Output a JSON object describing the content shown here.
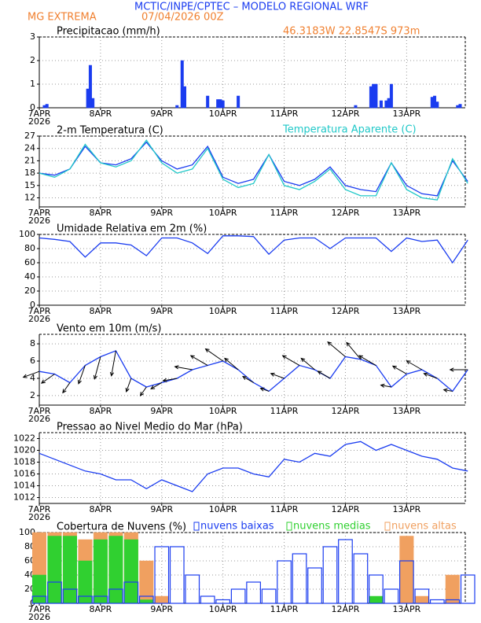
{
  "header": {
    "title": "MCTIC/INPE/CPTEC – MODELO REGIONAL WRF",
    "location": "MG EXTREMA",
    "run": "07/04/2026 00Z",
    "coordinates": "46.3183W 22.8547S 973m"
  },
  "chart_data": [
    {
      "type": "bar",
      "title": "Precipitacao (mm/h)",
      "color": "#1a3cf0",
      "x": [
        2,
        3,
        19,
        20,
        21,
        54,
        56,
        57,
        66,
        70,
        71,
        72,
        78,
        124,
        130,
        131,
        132,
        134,
        136,
        137,
        138,
        154,
        155,
        156,
        164,
        165
      ],
      "values": [
        0.1,
        0.15,
        0.8,
        1.8,
        0.4,
        0.1,
        2.0,
        0.9,
        0.5,
        0.35,
        0.35,
        0.3,
        0.5,
        0.1,
        0.9,
        1.0,
        1.0,
        0.3,
        0.3,
        0.4,
        1.0,
        0.45,
        0.5,
        0.25,
        0.1,
        0.15
      ],
      "xlim": [
        0,
        167
      ],
      "ylim": [
        0,
        3
      ],
      "yticks": [
        0,
        1,
        2,
        3
      ],
      "grid": true,
      "year": "2026",
      "xticks": [
        {
          "value": 0,
          "label": "7APR"
        },
        {
          "value": 24,
          "label": "8APR"
        },
        {
          "value": 48,
          "label": "9APR"
        },
        {
          "value": 72,
          "label": "10APR"
        },
        {
          "value": 96,
          "label": "11APR"
        },
        {
          "value": 120,
          "label": "12APR"
        },
        {
          "value": 144,
          "label": "13APR"
        }
      ]
    },
    {
      "type": "line",
      "title": "2-m Temperatura (C)",
      "x": [
        0,
        6,
        12,
        18,
        24,
        30,
        36,
        42,
        48,
        54,
        60,
        66,
        72,
        78,
        84,
        90,
        96,
        102,
        108,
        114,
        120,
        126,
        132,
        138,
        144,
        150,
        156,
        162,
        168
      ],
      "series": [
        {
          "color": "#1a3cf0",
          "values": [
            18,
            17.5,
            19,
            24.5,
            20.5,
            20,
            21.5,
            25.5,
            21,
            19,
            20,
            24.5,
            17,
            15.5,
            16.5,
            22.5,
            16,
            15,
            16.5,
            19.5,
            15,
            14,
            13.5,
            20.5,
            15,
            13,
            12.5,
            21,
            16
          ]
        },
        {
          "name": "Temperatura Aparente (C)",
          "color": "#20c8c8",
          "values": [
            18,
            17,
            19,
            25,
            20.5,
            19.5,
            21,
            26,
            20.5,
            18,
            19,
            24,
            16.5,
            14.5,
            15.5,
            22.5,
            15,
            14,
            16,
            19,
            14,
            12.5,
            12.5,
            20.5,
            14,
            12,
            11.5,
            21.5,
            15.5
          ]
        }
      ],
      "xlim": [
        0,
        167
      ],
      "ylim": [
        9.8,
        27
      ],
      "yticks": [
        12,
        15,
        18,
        21,
        24,
        27
      ],
      "grid": true,
      "year": "2026",
      "xticks": [
        {
          "value": 0,
          "label": "7APR"
        },
        {
          "value": 24,
          "label": "8APR"
        },
        {
          "value": 48,
          "label": "9APR"
        },
        {
          "value": 72,
          "label": "10APR"
        },
        {
          "value": 96,
          "label": "11APR"
        },
        {
          "value": 120,
          "label": "12APR"
        },
        {
          "value": 144,
          "label": "13APR"
        }
      ]
    },
    {
      "type": "line",
      "title": "Umidade Relativa em 2m (%)",
      "x": [
        0,
        6,
        12,
        18,
        24,
        30,
        36,
        42,
        48,
        54,
        60,
        66,
        72,
        78,
        84,
        90,
        96,
        102,
        108,
        114,
        120,
        126,
        132,
        138,
        144,
        150,
        156,
        162,
        168
      ],
      "series": [
        {
          "color": "#1a3cf0",
          "values": [
            95,
            93,
            90,
            68,
            88,
            88,
            85,
            70,
            95,
            95,
            88,
            73,
            98,
            98,
            97,
            72,
            92,
            95,
            95,
            80,
            95,
            95,
            95,
            76,
            95,
            90,
            92,
            60,
            92
          ]
        }
      ],
      "xlim": [
        0,
        167
      ],
      "ylim": [
        0,
        100
      ],
      "yticks": [
        0,
        20,
        40,
        60,
        80,
        100
      ],
      "grid": true,
      "year": "2026",
      "xticks": [
        {
          "value": 0,
          "label": "7APR"
        },
        {
          "value": 24,
          "label": "8APR"
        },
        {
          "value": 48,
          "label": "9APR"
        },
        {
          "value": 72,
          "label": "10APR"
        },
        {
          "value": 96,
          "label": "11APR"
        },
        {
          "value": 120,
          "label": "12APR"
        },
        {
          "value": 144,
          "label": "13APR"
        }
      ]
    },
    {
      "type": "wind",
      "title": "Vento em 10m (m/s)",
      "x": [
        0,
        6,
        12,
        18,
        24,
        30,
        36,
        42,
        48,
        54,
        60,
        66,
        72,
        78,
        84,
        90,
        96,
        102,
        108,
        114,
        120,
        126,
        132,
        138,
        144,
        150,
        156,
        162,
        168
      ],
      "series": [
        {
          "color": "#1a3cf0",
          "values": [
            4.8,
            4.5,
            3.5,
            5.5,
            6.5,
            7.2,
            4,
            3,
            3.5,
            4,
            5,
            5.5,
            6,
            5,
            3.5,
            2.5,
            4,
            5.5,
            5,
            4,
            6.5,
            6.2,
            5.5,
            3,
            4.5,
            5,
            4,
            2.5,
            5
          ]
        }
      ],
      "directions": [
        250,
        235,
        215,
        200,
        195,
        190,
        200,
        215,
        240,
        260,
        280,
        300,
        305,
        310,
        300,
        290,
        290,
        300,
        310,
        300,
        310,
        320,
        300,
        280,
        300,
        300,
        290,
        280,
        270
      ],
      "xlim": [
        0,
        167
      ],
      "ylim": [
        0.9,
        9.1
      ],
      "yticks": [
        2,
        4,
        6,
        8
      ],
      "grid": true,
      "year": "2026",
      "xticks": [
        {
          "value": 0,
          "label": "7APR"
        },
        {
          "value": 24,
          "label": "8APR"
        },
        {
          "value": 48,
          "label": "9APR"
        },
        {
          "value": 72,
          "label": "10APR"
        },
        {
          "value": 96,
          "label": "11APR"
        },
        {
          "value": 120,
          "label": "12APR"
        },
        {
          "value": 144,
          "label": "13APR"
        }
      ]
    },
    {
      "type": "line",
      "title": "Pressao ao Nivel Medio do Mar (hPa)",
      "x": [
        0,
        6,
        12,
        18,
        24,
        30,
        36,
        42,
        48,
        54,
        60,
        66,
        72,
        78,
        84,
        90,
        96,
        102,
        108,
        114,
        120,
        126,
        132,
        138,
        144,
        150,
        156,
        162,
        168
      ],
      "series": [
        {
          "color": "#1a3cf0",
          "values": [
            1019.5,
            1018.5,
            1017.5,
            1016.5,
            1016,
            1015,
            1015,
            1013.5,
            1015,
            1014,
            1013,
            1016,
            1017,
            1017,
            1016,
            1015.5,
            1018.5,
            1018,
            1019.5,
            1019,
            1021,
            1021.5,
            1020,
            1021,
            1020,
            1019,
            1018.5,
            1017,
            1016.5
          ]
        }
      ],
      "xlim": [
        0,
        167
      ],
      "ylim": [
        1011,
        1023
      ],
      "yticks": [
        1012,
        1014,
        1016,
        1018,
        1020,
        1022
      ],
      "grid": true,
      "year": "2026",
      "xticks": [
        {
          "value": 0,
          "label": "7APR"
        },
        {
          "value": 24,
          "label": "8APR"
        },
        {
          "value": 48,
          "label": "9APR"
        },
        {
          "value": 72,
          "label": "10APR"
        },
        {
          "value": 96,
          "label": "11APR"
        },
        {
          "value": 120,
          "label": "12APR"
        },
        {
          "value": 144,
          "label": "13APR"
        }
      ]
    },
    {
      "type": "bar",
      "title": "Cobertura de Nuvens (%)",
      "x": [
        0,
        6,
        12,
        18,
        24,
        30,
        36,
        42,
        48,
        54,
        60,
        66,
        72,
        78,
        84,
        90,
        96,
        102,
        108,
        114,
        120,
        126,
        132,
        138,
        144,
        150,
        156,
        162,
        168
      ],
      "series": [
        {
          "name": "nuvens altas",
          "color": "#f0a060",
          "values": [
            100,
            100,
            100,
            90,
            100,
            100,
            100,
            60,
            10,
            0,
            0,
            0,
            0,
            0,
            0,
            0,
            0,
            0,
            0,
            0,
            0,
            0,
            0,
            0,
            95,
            10,
            0,
            40,
            0
          ]
        },
        {
          "name": "nuvens medias",
          "color": "#30d030",
          "values": [
            40,
            95,
            95,
            60,
            90,
            95,
            90,
            5,
            0,
            0,
            0,
            0,
            0,
            0,
            0,
            0,
            0,
            0,
            0,
            0,
            0,
            0,
            10,
            0,
            0,
            0,
            0,
            0,
            0
          ]
        },
        {
          "name": "nuvens baixas",
          "color": "#1a3cf0",
          "hollow": true,
          "values": [
            10,
            30,
            20,
            10,
            10,
            20,
            30,
            10,
            80,
            80,
            40,
            10,
            5,
            20,
            30,
            20,
            60,
            70,
            50,
            80,
            90,
            70,
            40,
            20,
            60,
            20,
            5,
            5,
            40
          ]
        }
      ],
      "xlim": [
        0,
        167
      ],
      "ylim": [
        0,
        100
      ],
      "yticks": [
        0,
        20,
        40,
        60,
        80,
        100
      ],
      "grid": true,
      "year": "2026",
      "xticks": [
        {
          "value": 0,
          "label": "7APR"
        },
        {
          "value": 24,
          "label": "8APR"
        },
        {
          "value": 48,
          "label": "9APR"
        },
        {
          "value": 72,
          "label": "10APR"
        },
        {
          "value": 96,
          "label": "11APR"
        },
        {
          "value": 120,
          "label": "12APR"
        },
        {
          "value": 144,
          "label": "13APR"
        }
      ]
    }
  ]
}
